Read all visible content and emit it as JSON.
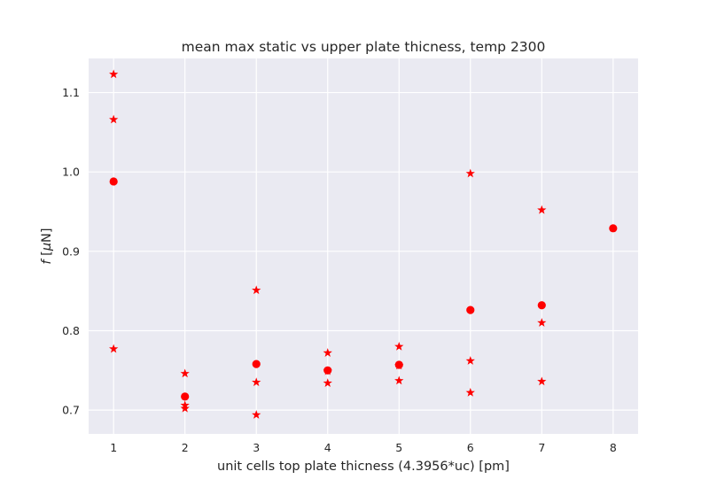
{
  "chart_data": {
    "type": "scatter",
    "title": "mean max static vs upper plate thicness, temp 2300",
    "xlabel": "unit cells top plate thicness (4.3956*uc) [pm]",
    "ylabel": {
      "italic": "f",
      "rest": " [",
      "mu": "μ",
      "unit": "N]"
    },
    "xlim": [
      0.65,
      8.35
    ],
    "ylim": [
      0.67,
      1.143
    ],
    "xticks": [
      1,
      2,
      3,
      4,
      5,
      6,
      7,
      8
    ],
    "xtick_labels": [
      "1",
      "2",
      "3",
      "4",
      "5",
      "6",
      "7",
      "8"
    ],
    "yticks": [
      0.7,
      0.8,
      0.9,
      1.0,
      1.1
    ],
    "ytick_labels": [
      "0.7",
      "0.8",
      "0.9",
      "1.0",
      "1.1"
    ],
    "grid": true,
    "background_color": "#eaeaf2",
    "grid_color": "#ffffff",
    "marker_color": "#ff0000",
    "series": [
      {
        "marker": "circle",
        "points": [
          {
            "x": 1,
            "y": 0.988
          },
          {
            "x": 2,
            "y": 0.717
          },
          {
            "x": 3,
            "y": 0.758
          },
          {
            "x": 4,
            "y": 0.75
          },
          {
            "x": 5,
            "y": 0.757
          },
          {
            "x": 6,
            "y": 0.826
          },
          {
            "x": 7,
            "y": 0.832
          },
          {
            "x": 8,
            "y": 0.929
          }
        ]
      },
      {
        "marker": "star",
        "points": [
          {
            "x": 1,
            "y": 1.123
          },
          {
            "x": 1,
            "y": 1.066
          },
          {
            "x": 1,
            "y": 0.777
          },
          {
            "x": 2,
            "y": 0.746
          },
          {
            "x": 2,
            "y": 0.706
          },
          {
            "x": 2,
            "y": 0.702
          },
          {
            "x": 3,
            "y": 0.851
          },
          {
            "x": 3,
            "y": 0.735
          },
          {
            "x": 3,
            "y": 0.694
          },
          {
            "x": 4,
            "y": 0.772
          },
          {
            "x": 4,
            "y": 0.749
          },
          {
            "x": 4,
            "y": 0.734
          },
          {
            "x": 5,
            "y": 0.78
          },
          {
            "x": 5,
            "y": 0.756
          },
          {
            "x": 5,
            "y": 0.737
          },
          {
            "x": 6,
            "y": 0.998
          },
          {
            "x": 6,
            "y": 0.762
          },
          {
            "x": 6,
            "y": 0.722
          },
          {
            "x": 7,
            "y": 0.952
          },
          {
            "x": 7,
            "y": 0.81
          },
          {
            "x": 7,
            "y": 0.736
          }
        ]
      }
    ]
  }
}
